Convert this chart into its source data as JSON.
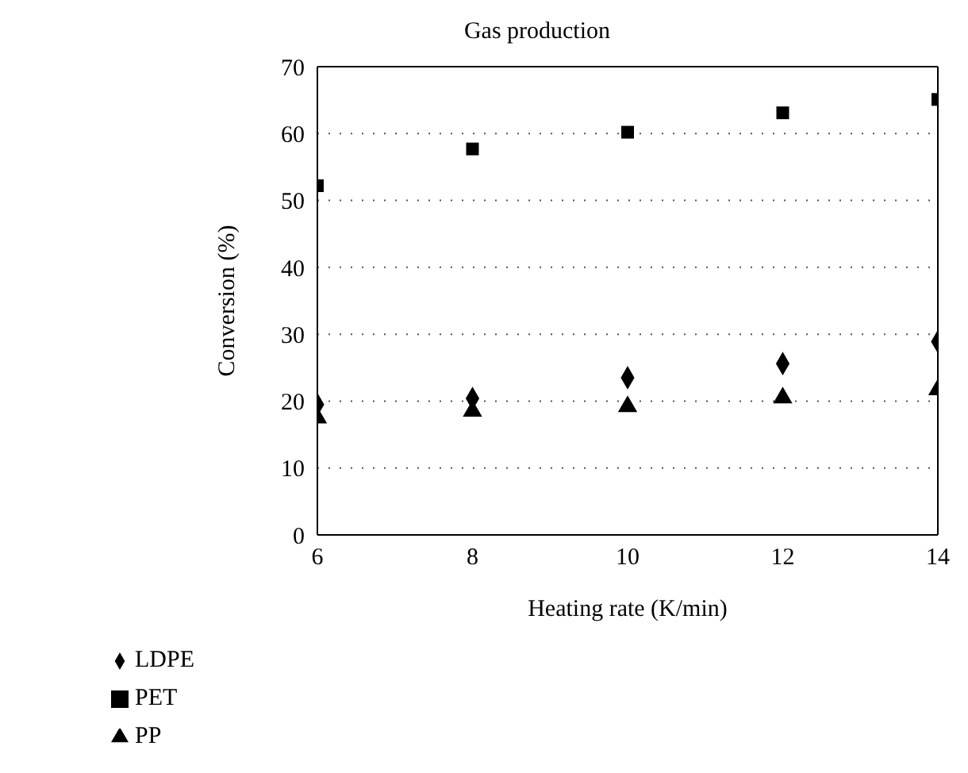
{
  "chart_data": {
    "type": "scatter",
    "title": "Gas production",
    "xlabel": "Heating rate (K/min)",
    "ylabel": "Conversion (%)",
    "x": [
      6,
      8,
      10,
      12,
      14
    ],
    "series": [
      {
        "name": "LDPE",
        "color": "#000000",
        "marker": "diamond",
        "values": [
          19.5,
          20.4,
          23.5,
          25.6,
          28.9
        ]
      },
      {
        "name": "PET",
        "color": "#000000",
        "marker": "square",
        "values": [
          52.2,
          57.7,
          60.2,
          63.1,
          65.1
        ]
      },
      {
        "name": "PP",
        "color": "#000000",
        "marker": "triangle",
        "values": [
          17.5,
          18.5,
          19.2,
          20.5,
          21.7
        ]
      }
    ],
    "xlim": [
      6,
      14
    ],
    "xticks": [
      6,
      8,
      10,
      12,
      14
    ],
    "ylim": [
      0,
      70
    ],
    "yticks": [
      0,
      10,
      20,
      30,
      40,
      50,
      60,
      70
    ],
    "grid": "y",
    "legend": "bottom left"
  }
}
